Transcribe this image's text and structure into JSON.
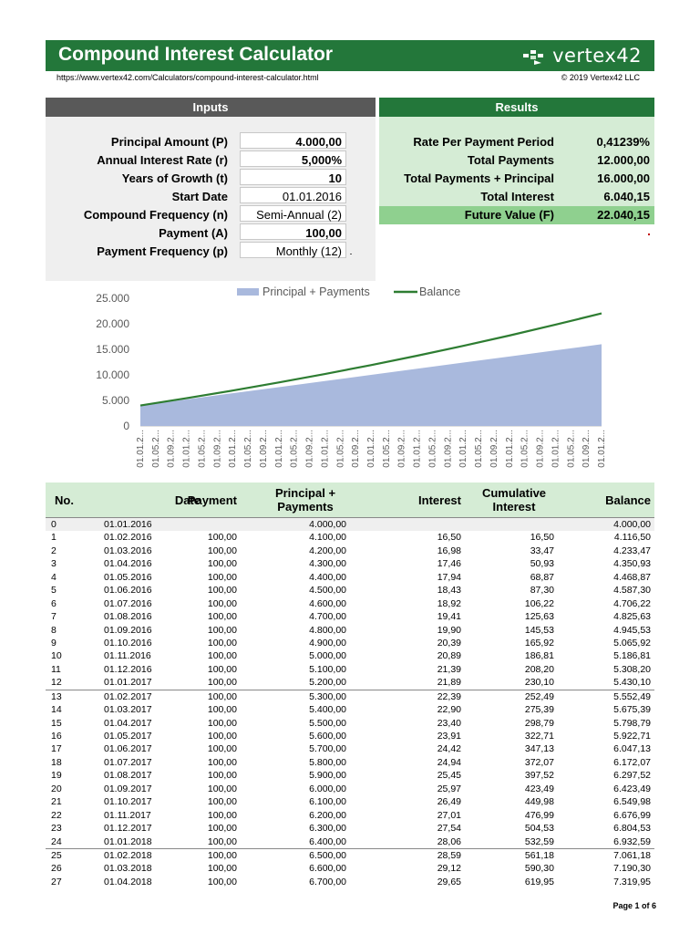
{
  "header": {
    "title": "Compound Interest Calculator",
    "brand": "vertex42",
    "url": "https://www.vertex42.com/Calculators/compound-interest-calculator.html",
    "copyright": "© 2019 Vertex42 LLC",
    "logo_icon": "vertex42-logo-icon"
  },
  "colors": {
    "accent_green": "#23773a",
    "light_green": "#d5ecd5",
    "mid_green": "#8fd08f",
    "gray_header": "#595959",
    "area": "#a9b9dd",
    "line": "#2e7d32"
  },
  "inputs": {
    "heading": "Inputs",
    "rows": [
      {
        "label": "Principal Amount (P)",
        "value": "4.000,00"
      },
      {
        "label": "Annual Interest Rate (r)",
        "value": "5,000%"
      },
      {
        "label": "Years of Growth (t)",
        "value": "10"
      },
      {
        "label": "Start Date",
        "value": "01.01.2016"
      },
      {
        "label": "Compound Frequency (n)",
        "value": "Semi-Annual (2)"
      },
      {
        "label": "Payment (A)",
        "value": "100,00"
      },
      {
        "label": "Payment Frequency (p)",
        "value": "Monthly (12)"
      }
    ]
  },
  "results": {
    "heading": "Results",
    "rows": [
      {
        "label": "Rate Per Payment Period",
        "value": "0,41239%"
      },
      {
        "label": "Total Payments",
        "value": "12.000,00"
      },
      {
        "label": "Total Payments + Principal",
        "value": "16.000,00"
      },
      {
        "label": "Total Interest",
        "value": "6.040,15"
      },
      {
        "label": "Future Value (F)",
        "value": "22.040,15"
      }
    ]
  },
  "chart_data": {
    "type": "area",
    "legend": [
      "Principal + Payments",
      "Balance"
    ],
    "legend_position": "top",
    "ylim": [
      0,
      25000
    ],
    "yticks": [
      "0",
      "5.000",
      "10.000",
      "15.000",
      "20.000",
      "25.000"
    ],
    "xtick_labels": [
      "01.01.2...",
      "01.05.2...",
      "01.09.2...",
      "01.01.2...",
      "01.05.2...",
      "01.09.2...",
      "01.01.2...",
      "01.05.2...",
      "01.09.2...",
      "01.01.2...",
      "01.05.2...",
      "01.09.2...",
      "01.01.2...",
      "01.05.2...",
      "01.09.2...",
      "01.01.2...",
      "01.05.2...",
      "01.09.2...",
      "01.01.2...",
      "01.05.2...",
      "01.09.2...",
      "01.01.2...",
      "01.05.2...",
      "01.09.2...",
      "01.01.2...",
      "01.05.2...",
      "01.09.2...",
      "01.01.2...",
      "01.05.2...",
      "01.09.2...",
      "01.01.2..."
    ],
    "series": [
      {
        "name": "Principal + Payments",
        "kind": "area",
        "x": [
          0,
          12,
          24,
          36,
          48,
          60,
          72,
          84,
          96,
          108,
          120
        ],
        "values": [
          4000,
          5200,
          6400,
          7600,
          8800,
          10000,
          11200,
          12400,
          13600,
          14800,
          16000
        ]
      },
      {
        "name": "Balance",
        "kind": "line",
        "x": [
          0,
          12,
          24,
          36,
          48,
          60,
          72,
          84,
          96,
          108,
          120
        ],
        "values": [
          4000,
          5430,
          6933,
          8512,
          10172,
          11916,
          13750,
          15676,
          17701,
          19830,
          22040
        ]
      }
    ],
    "grid": false
  },
  "table": {
    "headers": {
      "no": "No.",
      "date": "Date",
      "payment": "Payment",
      "pp": "Principal + Payments",
      "interest": "Interest",
      "cum": "Cumulative Interest",
      "balance": "Balance"
    },
    "rows": [
      [
        "0",
        "01.01.2016",
        "",
        "4.000,00",
        "",
        "",
        "4.000,00"
      ],
      [
        "1",
        "01.02.2016",
        "100,00",
        "4.100,00",
        "16,50",
        "16,50",
        "4.116,50"
      ],
      [
        "2",
        "01.03.2016",
        "100,00",
        "4.200,00",
        "16,98",
        "33,47",
        "4.233,47"
      ],
      [
        "3",
        "01.04.2016",
        "100,00",
        "4.300,00",
        "17,46",
        "50,93",
        "4.350,93"
      ],
      [
        "4",
        "01.05.2016",
        "100,00",
        "4.400,00",
        "17,94",
        "68,87",
        "4.468,87"
      ],
      [
        "5",
        "01.06.2016",
        "100,00",
        "4.500,00",
        "18,43",
        "87,30",
        "4.587,30"
      ],
      [
        "6",
        "01.07.2016",
        "100,00",
        "4.600,00",
        "18,92",
        "106,22",
        "4.706,22"
      ],
      [
        "7",
        "01.08.2016",
        "100,00",
        "4.700,00",
        "19,41",
        "125,63",
        "4.825,63"
      ],
      [
        "8",
        "01.09.2016",
        "100,00",
        "4.800,00",
        "19,90",
        "145,53",
        "4.945,53"
      ],
      [
        "9",
        "01.10.2016",
        "100,00",
        "4.900,00",
        "20,39",
        "165,92",
        "5.065,92"
      ],
      [
        "10",
        "01.11.2016",
        "100,00",
        "5.000,00",
        "20,89",
        "186,81",
        "5.186,81"
      ],
      [
        "11",
        "01.12.2016",
        "100,00",
        "5.100,00",
        "21,39",
        "208,20",
        "5.308,20"
      ],
      [
        "12",
        "01.01.2017",
        "100,00",
        "5.200,00",
        "21,89",
        "230,10",
        "5.430,10"
      ],
      [
        "13",
        "01.02.2017",
        "100,00",
        "5.300,00",
        "22,39",
        "252,49",
        "5.552,49"
      ],
      [
        "14",
        "01.03.2017",
        "100,00",
        "5.400,00",
        "22,90",
        "275,39",
        "5.675,39"
      ],
      [
        "15",
        "01.04.2017",
        "100,00",
        "5.500,00",
        "23,40",
        "298,79",
        "5.798,79"
      ],
      [
        "16",
        "01.05.2017",
        "100,00",
        "5.600,00",
        "23,91",
        "322,71",
        "5.922,71"
      ],
      [
        "17",
        "01.06.2017",
        "100,00",
        "5.700,00",
        "24,42",
        "347,13",
        "6.047,13"
      ],
      [
        "18",
        "01.07.2017",
        "100,00",
        "5.800,00",
        "24,94",
        "372,07",
        "6.172,07"
      ],
      [
        "19",
        "01.08.2017",
        "100,00",
        "5.900,00",
        "25,45",
        "397,52",
        "6.297,52"
      ],
      [
        "20",
        "01.09.2017",
        "100,00",
        "6.000,00",
        "25,97",
        "423,49",
        "6.423,49"
      ],
      [
        "21",
        "01.10.2017",
        "100,00",
        "6.100,00",
        "26,49",
        "449,98",
        "6.549,98"
      ],
      [
        "22",
        "01.11.2017",
        "100,00",
        "6.200,00",
        "27,01",
        "476,99",
        "6.676,99"
      ],
      [
        "23",
        "01.12.2017",
        "100,00",
        "6.300,00",
        "27,54",
        "504,53",
        "6.804,53"
      ],
      [
        "24",
        "01.01.2018",
        "100,00",
        "6.400,00",
        "28,06",
        "532,59",
        "6.932,59"
      ],
      [
        "25",
        "01.02.2018",
        "100,00",
        "6.500,00",
        "28,59",
        "561,18",
        "7.061,18"
      ],
      [
        "26",
        "01.03.2018",
        "100,00",
        "6.600,00",
        "29,12",
        "590,30",
        "7.190,30"
      ],
      [
        "27",
        "01.04.2018",
        "100,00",
        "6.700,00",
        "29,65",
        "619,95",
        "7.319,95"
      ]
    ]
  },
  "footer": {
    "page": "Page 1 of 6"
  }
}
